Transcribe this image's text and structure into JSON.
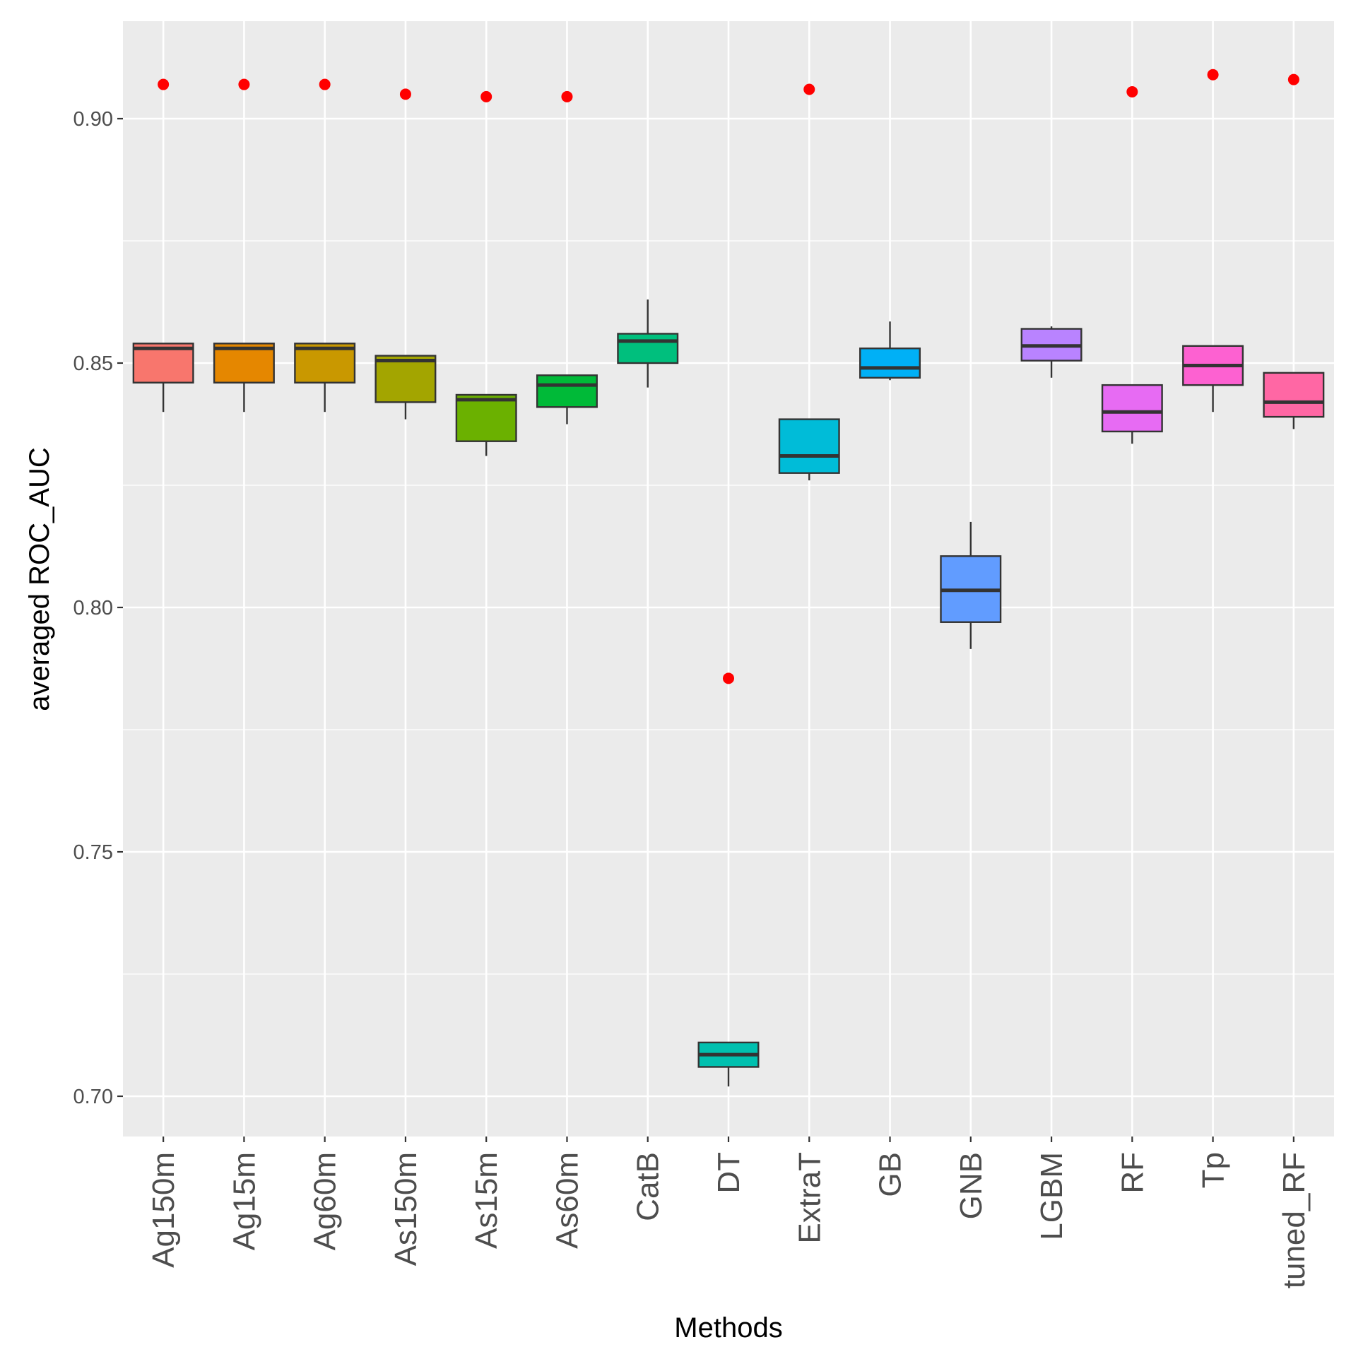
{
  "chart_data": {
    "type": "box",
    "title": "",
    "xlabel": "Methods",
    "ylabel": "averaged ROC_AUC",
    "ylim": [
      0.692,
      0.92
    ],
    "yticks": [
      0.7,
      0.75,
      0.8,
      0.85,
      0.9
    ],
    "ytick_labels": [
      "0.70",
      "0.75",
      "0.80",
      "0.85",
      "0.90"
    ],
    "minor_grid": [
      0.725,
      0.775,
      0.825,
      0.875
    ],
    "grid": true,
    "legend": "none",
    "outlier_color": "#ff0000",
    "panel_color": "#ebebeb",
    "categories": [
      "Ag150m",
      "Ag15m",
      "Ag60m",
      "As150m",
      "As15m",
      "As60m",
      "CatB",
      "DT",
      "ExtraT",
      "GB",
      "GNB",
      "LGBM",
      "RF",
      "Tp",
      "tuned_RF"
    ],
    "boxes": [
      {
        "name": "Ag150m",
        "color": "#F8766D",
        "min": 0.84,
        "q1": 0.846,
        "median": 0.853,
        "q3": 0.854,
        "max": 0.854,
        "outliers": [
          0.907
        ]
      },
      {
        "name": "Ag15m",
        "color": "#E58700",
        "min": 0.84,
        "q1": 0.846,
        "median": 0.853,
        "q3": 0.854,
        "max": 0.854,
        "outliers": [
          0.907
        ]
      },
      {
        "name": "Ag60m",
        "color": "#C99800",
        "min": 0.84,
        "q1": 0.846,
        "median": 0.853,
        "q3": 0.854,
        "max": 0.854,
        "outliers": [
          0.907
        ]
      },
      {
        "name": "As150m",
        "color": "#A3A500",
        "min": 0.8385,
        "q1": 0.842,
        "median": 0.8505,
        "q3": 0.8515,
        "max": 0.8515,
        "outliers": [
          0.905
        ]
      },
      {
        "name": "As15m",
        "color": "#6BB100",
        "min": 0.831,
        "q1": 0.834,
        "median": 0.8425,
        "q3": 0.8435,
        "max": 0.8435,
        "outliers": [
          0.9045
        ]
      },
      {
        "name": "As60m",
        "color": "#00BA38",
        "min": 0.8375,
        "q1": 0.841,
        "median": 0.8455,
        "q3": 0.8475,
        "max": 0.8475,
        "outliers": [
          0.9045
        ]
      },
      {
        "name": "CatB",
        "color": "#00BF7D",
        "min": 0.845,
        "q1": 0.85,
        "median": 0.8545,
        "q3": 0.856,
        "max": 0.863,
        "outliers": []
      },
      {
        "name": "DT",
        "color": "#00C0AF",
        "min": 0.702,
        "q1": 0.706,
        "median": 0.7085,
        "q3": 0.711,
        "max": 0.711,
        "outliers": [
          0.7855
        ]
      },
      {
        "name": "ExtraT",
        "color": "#00BCD8",
        "min": 0.826,
        "q1": 0.8275,
        "median": 0.831,
        "q3": 0.8385,
        "max": 0.8385,
        "outliers": [
          0.906
        ]
      },
      {
        "name": "GB",
        "color": "#00B0F6",
        "min": 0.8465,
        "q1": 0.847,
        "median": 0.849,
        "q3": 0.853,
        "max": 0.8585,
        "outliers": []
      },
      {
        "name": "GNB",
        "color": "#619CFF",
        "min": 0.7915,
        "q1": 0.797,
        "median": 0.8035,
        "q3": 0.8105,
        "max": 0.8175,
        "outliers": []
      },
      {
        "name": "LGBM",
        "color": "#B983FF",
        "min": 0.847,
        "q1": 0.8505,
        "median": 0.8535,
        "q3": 0.857,
        "max": 0.8575,
        "outliers": []
      },
      {
        "name": "RF",
        "color": "#E76BF3",
        "min": 0.8335,
        "q1": 0.836,
        "median": 0.84,
        "q3": 0.8455,
        "max": 0.8455,
        "outliers": [
          0.9055
        ]
      },
      {
        "name": "Tp",
        "color": "#FD61D1",
        "min": 0.84,
        "q1": 0.8455,
        "median": 0.8495,
        "q3": 0.8535,
        "max": 0.8535,
        "outliers": [
          0.909
        ]
      },
      {
        "name": "tuned_RF",
        "color": "#FF67A4",
        "min": 0.8365,
        "q1": 0.839,
        "median": 0.842,
        "q3": 0.848,
        "max": 0.848,
        "outliers": [
          0.908
        ]
      }
    ]
  }
}
